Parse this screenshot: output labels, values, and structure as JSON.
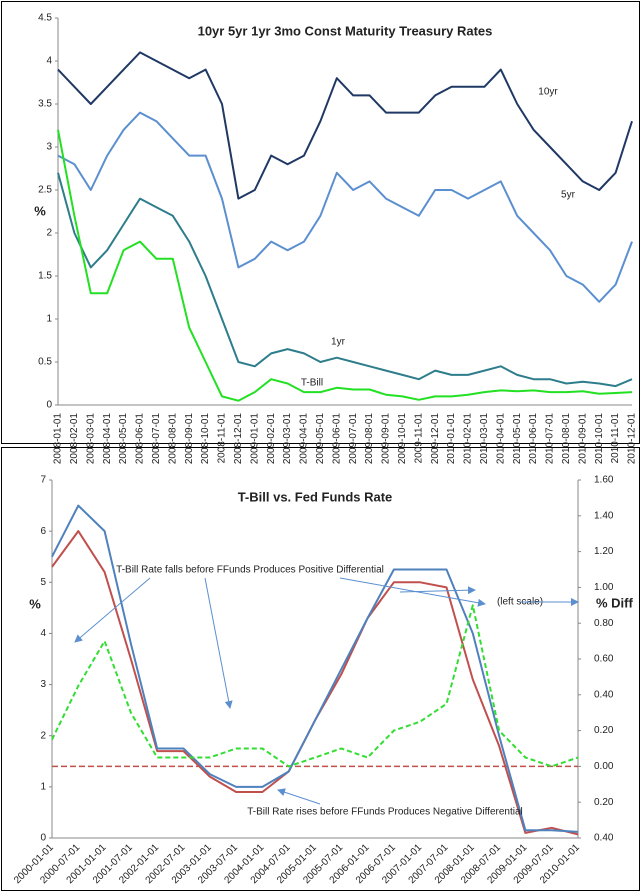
{
  "chart_data": [
    {
      "type": "line",
      "title": "10yr 5yr 1yr 3mo Const Maturity Treasury Rates",
      "ylabel": "%",
      "categories": [
        "2008-01-01",
        "2008-02-01",
        "2008-03-01",
        "2008-04-01",
        "2008-05-01",
        "2008-06-01",
        "2008-07-01",
        "2008-08-01",
        "2008-09-01",
        "2008-10-01",
        "2008-11-01",
        "2008-12-01",
        "2009-01-01",
        "2009-02-01",
        "2009-03-01",
        "2009-04-01",
        "2009-05-01",
        "2009-06-01",
        "2009-07-01",
        "2009-08-01",
        "2009-09-01",
        "2009-10-01",
        "2009-11-01",
        "2009-12-01",
        "2010-01-01",
        "2010-02-01",
        "2010-03-01",
        "2010-04-01",
        "2010-05-01",
        "2010-06-01",
        "2010-07-01",
        "2010-08-01",
        "2010-09-01",
        "2010-10-01",
        "2010-11-01",
        "2010-12-01"
      ],
      "series": [
        {
          "name": "10yr",
          "color": "#1f3864",
          "values": [
            3.9,
            3.7,
            3.5,
            3.7,
            3.9,
            4.1,
            4.0,
            3.9,
            3.8,
            3.9,
            3.5,
            2.4,
            2.5,
            2.9,
            2.8,
            2.9,
            3.3,
            3.8,
            3.6,
            3.6,
            3.4,
            3.4,
            3.4,
            3.6,
            3.7,
            3.7,
            3.7,
            3.9,
            3.5,
            3.2,
            3.0,
            2.8,
            2.6,
            2.5,
            2.7,
            3.3
          ]
        },
        {
          "name": "5yr",
          "color": "#5b8fd0",
          "values": [
            2.9,
            2.8,
            2.5,
            2.9,
            3.2,
            3.4,
            3.3,
            3.1,
            2.9,
            2.9,
            2.4,
            1.6,
            1.7,
            1.9,
            1.8,
            1.9,
            2.2,
            2.7,
            2.5,
            2.6,
            2.4,
            2.3,
            2.2,
            2.5,
            2.5,
            2.4,
            2.5,
            2.6,
            2.2,
            2.0,
            1.8,
            1.5,
            1.4,
            1.2,
            1.4,
            1.9
          ]
        },
        {
          "name": "1yr",
          "color": "#2e7d8c",
          "values": [
            2.7,
            2.0,
            1.6,
            1.8,
            2.1,
            2.4,
            2.3,
            2.2,
            1.9,
            1.5,
            1.0,
            0.5,
            0.45,
            0.6,
            0.65,
            0.6,
            0.5,
            0.55,
            0.5,
            0.45,
            0.4,
            0.35,
            0.3,
            0.4,
            0.35,
            0.35,
            0.4,
            0.45,
            0.35,
            0.3,
            0.3,
            0.25,
            0.27,
            0.25,
            0.22,
            0.3
          ]
        },
        {
          "name": "T-Bill",
          "color": "#22e022",
          "values": [
            3.2,
            2.2,
            1.3,
            1.3,
            1.8,
            1.9,
            1.7,
            1.7,
            0.9,
            0.5,
            0.1,
            0.05,
            0.15,
            0.3,
            0.25,
            0.15,
            0.15,
            0.2,
            0.18,
            0.18,
            0.12,
            0.1,
            0.06,
            0.1,
            0.1,
            0.12,
            0.15,
            0.17,
            0.16,
            0.17,
            0.15,
            0.15,
            0.16,
            0.13,
            0.14,
            0.15
          ]
        }
      ],
      "ylim": [
        0,
        4.5
      ],
      "yticks": [
        0,
        0.5,
        1,
        1.5,
        2,
        2.5,
        3,
        3.5,
        4,
        4.5
      ]
    },
    {
      "type": "line",
      "title": "T-Bill vs. Fed Funds Rate",
      "ylabel": "%",
      "y2label": "% Diff",
      "annotations": [
        "T-Bill Rate falls before FFunds Produces Positive Differential",
        "T-Bill Rate rises before FFunds Produces Negative Differential",
        "(left scale)"
      ],
      "categories": [
        "2000-01-01",
        "2000-07-01",
        "2001-01-01",
        "2001-07-01",
        "2002-01-01",
        "2002-07-01",
        "2003-01-01",
        "2003-07-01",
        "2004-01-01",
        "2004-07-01",
        "2005-01-01",
        "2005-07-01",
        "2006-01-01",
        "2006-07-01",
        "2007-01-01",
        "2007-07-01",
        "2008-01-01",
        "2008-07-01",
        "2009-01-01",
        "2009-07-01",
        "2010-01-01"
      ],
      "series": [
        {
          "color": "#c0504d",
          "values": [
            5.3,
            6.0,
            5.2,
            3.5,
            1.7,
            1.7,
            1.2,
            0.9,
            0.9,
            1.3,
            2.3,
            3.2,
            4.3,
            5.0,
            5.0,
            4.9,
            3.1,
            1.8,
            0.1,
            0.2,
            0.07
          ]
        },
        {
          "color": "#4f81bd",
          "values": [
            5.5,
            6.5,
            6.0,
            3.8,
            1.75,
            1.75,
            1.25,
            1.0,
            1.0,
            1.3,
            2.3,
            3.3,
            4.3,
            5.25,
            5.25,
            5.25,
            4.0,
            2.0,
            0.15,
            0.15,
            0.12
          ]
        },
        {
          "color": "#33dd33",
          "dashed": true,
          "axis": "y2",
          "values": [
            0.15,
            0.45,
            0.7,
            0.3,
            0.05,
            0.05,
            0.05,
            0.1,
            0.1,
            0.0,
            0.05,
            0.1,
            0.05,
            0.2,
            0.25,
            0.35,
            0.9,
            0.2,
            0.05,
            0.0,
            0.05
          ]
        }
      ],
      "ylim": [
        0,
        7
      ],
      "yticks": [
        0,
        1,
        2,
        3,
        4,
        5,
        6,
        7
      ],
      "y2lim": [
        -0.4,
        1.6
      ],
      "y2ticks": [
        {
          "value": -0.4,
          "label": "0.40"
        },
        {
          "value": -0.2,
          "label": "0.20"
        },
        {
          "value": 0,
          "label": "0.00"
        },
        {
          "value": 0.2,
          "label": "0.20"
        },
        {
          "value": 0.4,
          "label": "0.40"
        },
        {
          "value": 0.6,
          "label": "0.60"
        },
        {
          "value": 0.8,
          "label": "0.80"
        },
        {
          "value": 1.0,
          "label": "1.00"
        },
        {
          "value": 1.2,
          "label": "1.20"
        },
        {
          "value": 1.4,
          "label": "1.40"
        },
        {
          "value": 1.6,
          "label": "1.60"
        }
      ],
      "y2_negative_color": "#c00000",
      "zero_line_color": "#c0504d"
    }
  ]
}
